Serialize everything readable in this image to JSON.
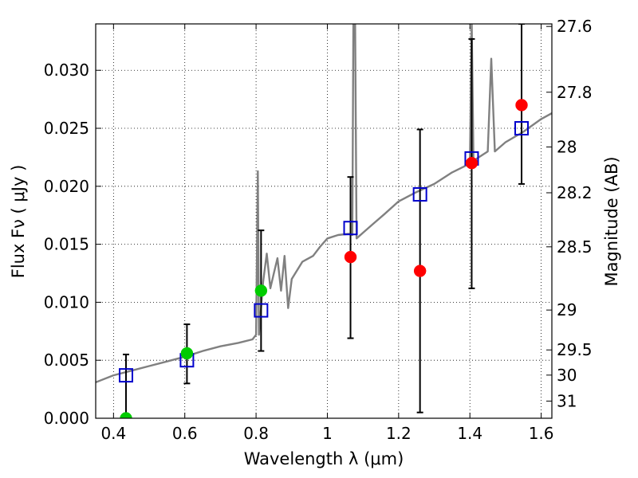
{
  "chart_data": {
    "type": "scatter",
    "xlabel": "Wavelength  λ (μm)",
    "ylabel": "Flux  Fν  ( μJy )",
    "y2label": "Magnitude (AB)",
    "xlim": [
      0.35,
      1.63
    ],
    "ylim": [
      0.0,
      0.034
    ],
    "grid": true,
    "x_ticks": [
      0.4,
      0.6,
      0.8,
      1.0,
      1.2,
      1.4,
      1.6
    ],
    "x_tick_labels": [
      "0.4",
      "0.6",
      "0.8",
      "1",
      "1.2",
      "1.4",
      "1.6"
    ],
    "y_ticks": [
      0.0,
      0.005,
      0.01,
      0.015,
      0.02,
      0.025,
      0.03
    ],
    "y_tick_labels": [
      "0.000",
      "0.005",
      "0.010",
      "0.015",
      "0.020",
      "0.025",
      "0.030"
    ],
    "y2_ticks": [
      {
        "label": "27.6",
        "flux": 0.03378
      },
      {
        "label": "27.8",
        "flux": 0.02811
      },
      {
        "label": "28",
        "flux": 0.02339
      },
      {
        "label": "28.2",
        "flux": 0.01944
      },
      {
        "label": "28.5",
        "flux": 0.01478
      },
      {
        "label": "29",
        "flux": 0.00933
      },
      {
        "label": "29.5",
        "flux": 0.00589
      },
      {
        "label": "30",
        "flux": 0.00372
      },
      {
        "label": "31",
        "flux": 0.00148
      }
    ],
    "series": [
      {
        "kind": "line",
        "color": "#808080",
        "points": [
          [
            0.35,
            0.0031
          ],
          [
            0.4,
            0.0037
          ],
          [
            0.45,
            0.0041
          ],
          [
            0.5,
            0.0045
          ],
          [
            0.55,
            0.0049
          ],
          [
            0.6,
            0.0053
          ],
          [
            0.65,
            0.0058
          ],
          [
            0.7,
            0.0062
          ],
          [
            0.75,
            0.0065
          ],
          [
            0.79,
            0.0068
          ],
          [
            0.8,
            0.0072
          ],
          [
            0.805,
            0.0213
          ],
          [
            0.808,
            0.0072
          ],
          [
            0.82,
            0.0118
          ],
          [
            0.83,
            0.0142
          ],
          [
            0.84,
            0.0112
          ],
          [
            0.85,
            0.0125
          ],
          [
            0.86,
            0.0138
          ],
          [
            0.87,
            0.011
          ],
          [
            0.88,
            0.014
          ],
          [
            0.89,
            0.0095
          ],
          [
            0.9,
            0.012
          ],
          [
            0.93,
            0.0135
          ],
          [
            0.96,
            0.014
          ],
          [
            0.98,
            0.0148
          ],
          [
            1.0,
            0.0155
          ],
          [
            1.03,
            0.0158
          ],
          [
            1.06,
            0.0159
          ],
          [
            1.07,
            0.0158
          ],
          [
            1.073,
            0.034
          ],
          [
            1.078,
            0.034
          ],
          [
            1.082,
            0.0155
          ],
          [
            1.1,
            0.016
          ],
          [
            1.13,
            0.0168
          ],
          [
            1.16,
            0.0176
          ],
          [
            1.2,
            0.0187
          ],
          [
            1.25,
            0.0195
          ],
          [
            1.3,
            0.0202
          ],
          [
            1.35,
            0.0212
          ],
          [
            1.39,
            0.0218
          ],
          [
            1.4,
            0.022
          ],
          [
            1.405,
            0.034
          ],
          [
            1.41,
            0.0222
          ],
          [
            1.45,
            0.023
          ],
          [
            1.46,
            0.031
          ],
          [
            1.47,
            0.023
          ],
          [
            1.5,
            0.0238
          ],
          [
            1.55,
            0.0247
          ],
          [
            1.6,
            0.0258
          ],
          [
            1.63,
            0.0263
          ]
        ]
      },
      {
        "kind": "errorbar",
        "color": "#000000",
        "points": [
          {
            "x": 0.435,
            "lo": 0.0,
            "hi": 0.0055
          },
          {
            "x": 0.606,
            "lo": 0.003,
            "hi": 0.0081
          },
          {
            "x": 0.814,
            "lo": 0.0058,
            "hi": 0.0162
          },
          {
            "x": 1.065,
            "lo": 0.0069,
            "hi": 0.0208
          },
          {
            "x": 1.26,
            "lo": 0.0005,
            "hi": 0.0249
          },
          {
            "x": 1.405,
            "lo": 0.0112,
            "hi": 0.0327
          },
          {
            "x": 1.545,
            "lo": 0.0202,
            "hi": 0.034
          }
        ]
      },
      {
        "kind": "marker",
        "shape": "square-open",
        "color": "#0000cc",
        "points": [
          [
            0.435,
            0.0037
          ],
          [
            0.606,
            0.005
          ],
          [
            0.814,
            0.0093
          ],
          [
            1.065,
            0.0164
          ],
          [
            1.26,
            0.0193
          ],
          [
            1.405,
            0.0224
          ],
          [
            1.545,
            0.025
          ]
        ]
      },
      {
        "kind": "marker",
        "shape": "circle",
        "color": "#00cc00",
        "points": [
          [
            0.435,
            0.0
          ],
          [
            0.606,
            0.0056
          ],
          [
            0.814,
            0.011
          ]
        ]
      },
      {
        "kind": "marker",
        "shape": "circle",
        "color": "#ff0000",
        "points": [
          [
            1.065,
            0.0139
          ],
          [
            1.26,
            0.0127
          ],
          [
            1.405,
            0.022
          ],
          [
            1.545,
            0.027
          ]
        ]
      }
    ]
  }
}
